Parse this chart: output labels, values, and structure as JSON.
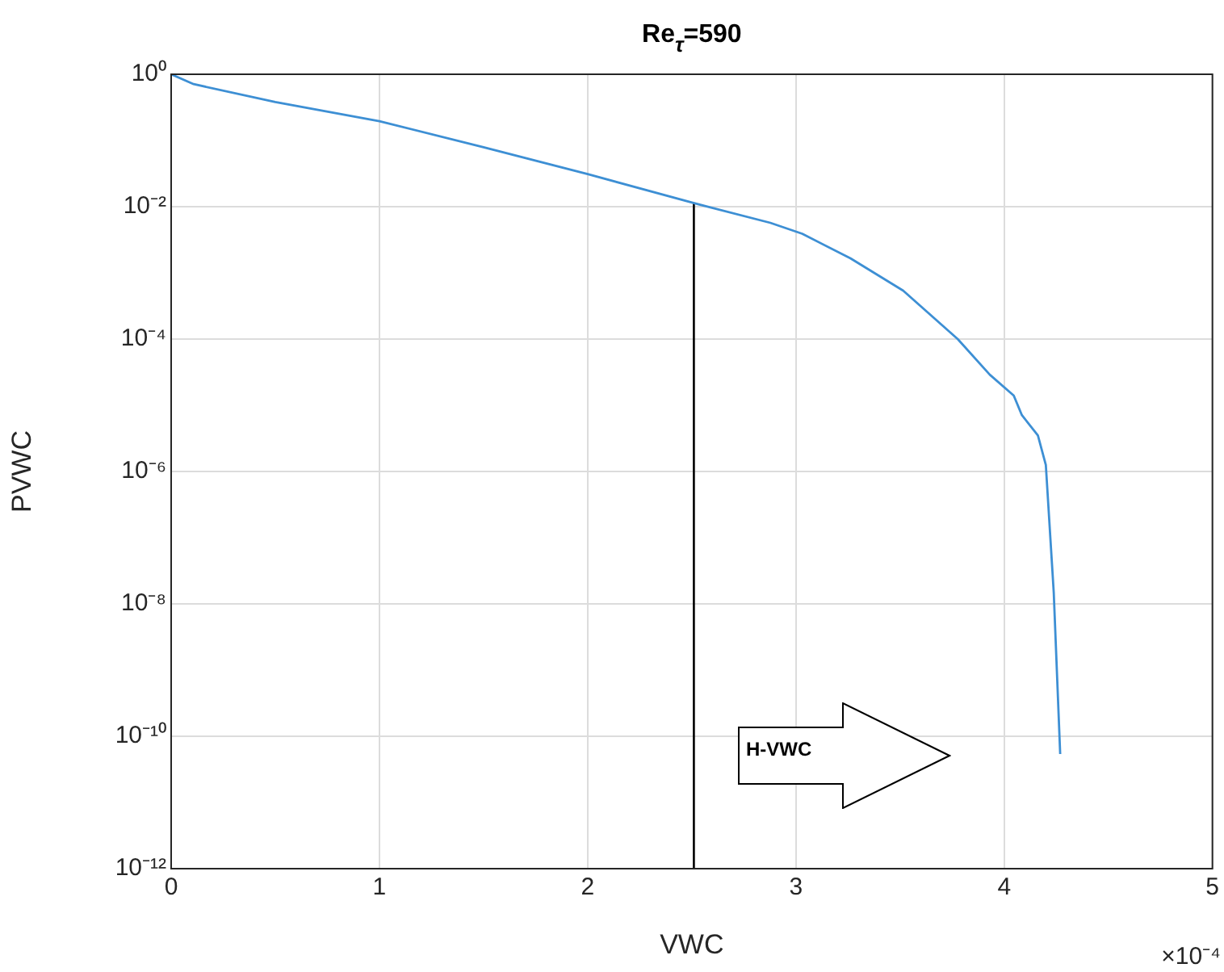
{
  "chart_data": {
    "type": "line",
    "title": "Re$_{τ}$=590",
    "xlabel": "VWC",
    "ylabel": "PVWC",
    "log": "y",
    "grid": true,
    "legend": false,
    "marker": "none",
    "line_style": "solid",
    "xlim": [
      0,
      5
    ],
    "xticks": [
      0,
      1,
      2,
      3,
      4,
      5
    ],
    "ylim": [
      1e-12,
      1
    ],
    "yticks": [
      {
        "value": 1e-12,
        "label": "10⁻¹²"
      },
      {
        "value": 1e-10,
        "label": "10⁻¹⁰"
      },
      {
        "value": 1e-08,
        "label": "10⁻⁸"
      },
      {
        "value": 1e-06,
        "label": "10⁻⁶"
      },
      {
        "value": 0.0001,
        "label": "10⁻⁴"
      },
      {
        "value": 0.01,
        "label": "10⁻²"
      },
      {
        "value": 1,
        "label": "10⁰"
      }
    ],
    "series": [
      {
        "type": "line",
        "color": "#3d8fd4",
        "x": [
          0,
          0.108,
          0.5,
          1,
          1.5,
          2,
          2.515,
          2.877,
          3.03,
          3.262,
          3.515,
          3.777,
          3.931,
          4.046,
          4.085,
          4.162,
          4.2,
          4.238,
          4.269
        ],
        "values": [
          1,
          0.71,
          0.38,
          0.196,
          0.079,
          0.031,
          0.0112,
          0.0057,
          0.0039,
          0.00166,
          0.00054,
          0.0001,
          2.9e-05,
          1.4e-05,
          7.1e-06,
          3.5e-06,
          1.26e-06,
          1.5e-08,
          5.4e-11
        ]
      },
      {
        "type": "line",
        "color": "#000000",
        "x": [
          2.51,
          2.51
        ],
        "values": [
          1e-12,
          0.0112
        ]
      }
    ],
    "annotations": [
      "H-VWC",
      "×10⁻⁴"
    ]
  }
}
